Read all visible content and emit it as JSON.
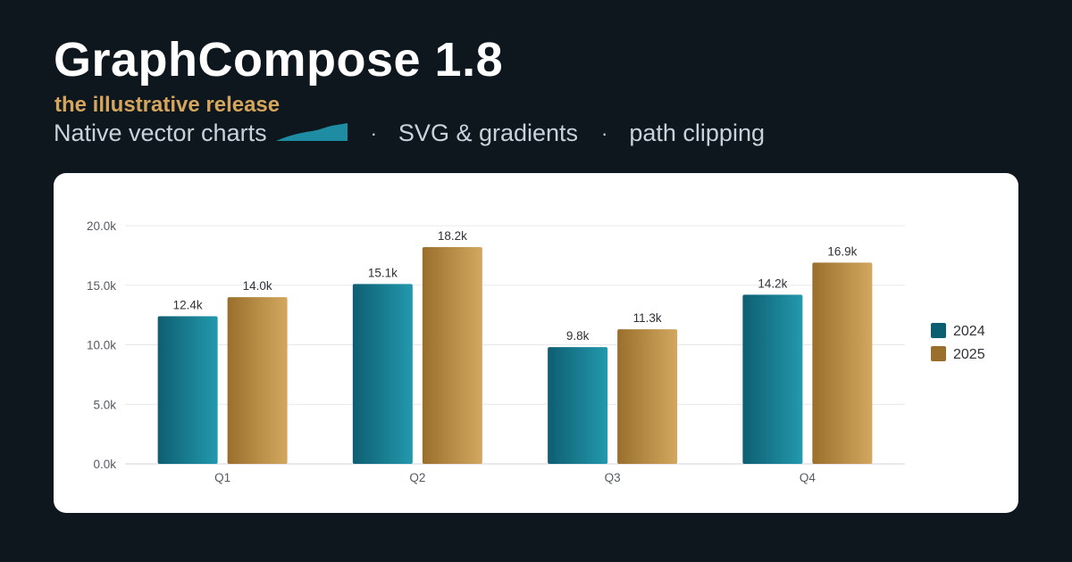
{
  "header": {
    "title": "GraphCompose 1.8",
    "subtitle": "the illustrative release",
    "features": [
      "Native vector charts",
      "SVG & gradients",
      "path clipping"
    ],
    "separator": "·"
  },
  "colors": {
    "background": "#0f171e",
    "accent_gold": "#d4a55c",
    "accent_teal": "#1e8da3",
    "series_2024": [
      "#0e5e72",
      "#2399ad"
    ],
    "series_2025": [
      "#9a6f2c",
      "#d2a860"
    ]
  },
  "chart_data": {
    "type": "bar",
    "categories": [
      "Q1",
      "Q2",
      "Q3",
      "Q4"
    ],
    "series": [
      {
        "name": "2024",
        "values": [
          12.4,
          15.1,
          9.8,
          14.2
        ],
        "labels": [
          "12.4k",
          "15.1k",
          "9.8k",
          "14.2k"
        ]
      },
      {
        "name": "2025",
        "values": [
          14.0,
          18.2,
          11.3,
          16.9
        ],
        "labels": [
          "14.0k",
          "18.2k",
          "11.3k",
          "16.9k"
        ]
      }
    ],
    "ylim": [
      0,
      20
    ],
    "yticks": [
      "0.0k",
      "5.0k",
      "10.0k",
      "15.0k",
      "20.0k"
    ],
    "title": "",
    "xlabel": "",
    "ylabel": "",
    "grid": true,
    "legend_position": "right"
  }
}
